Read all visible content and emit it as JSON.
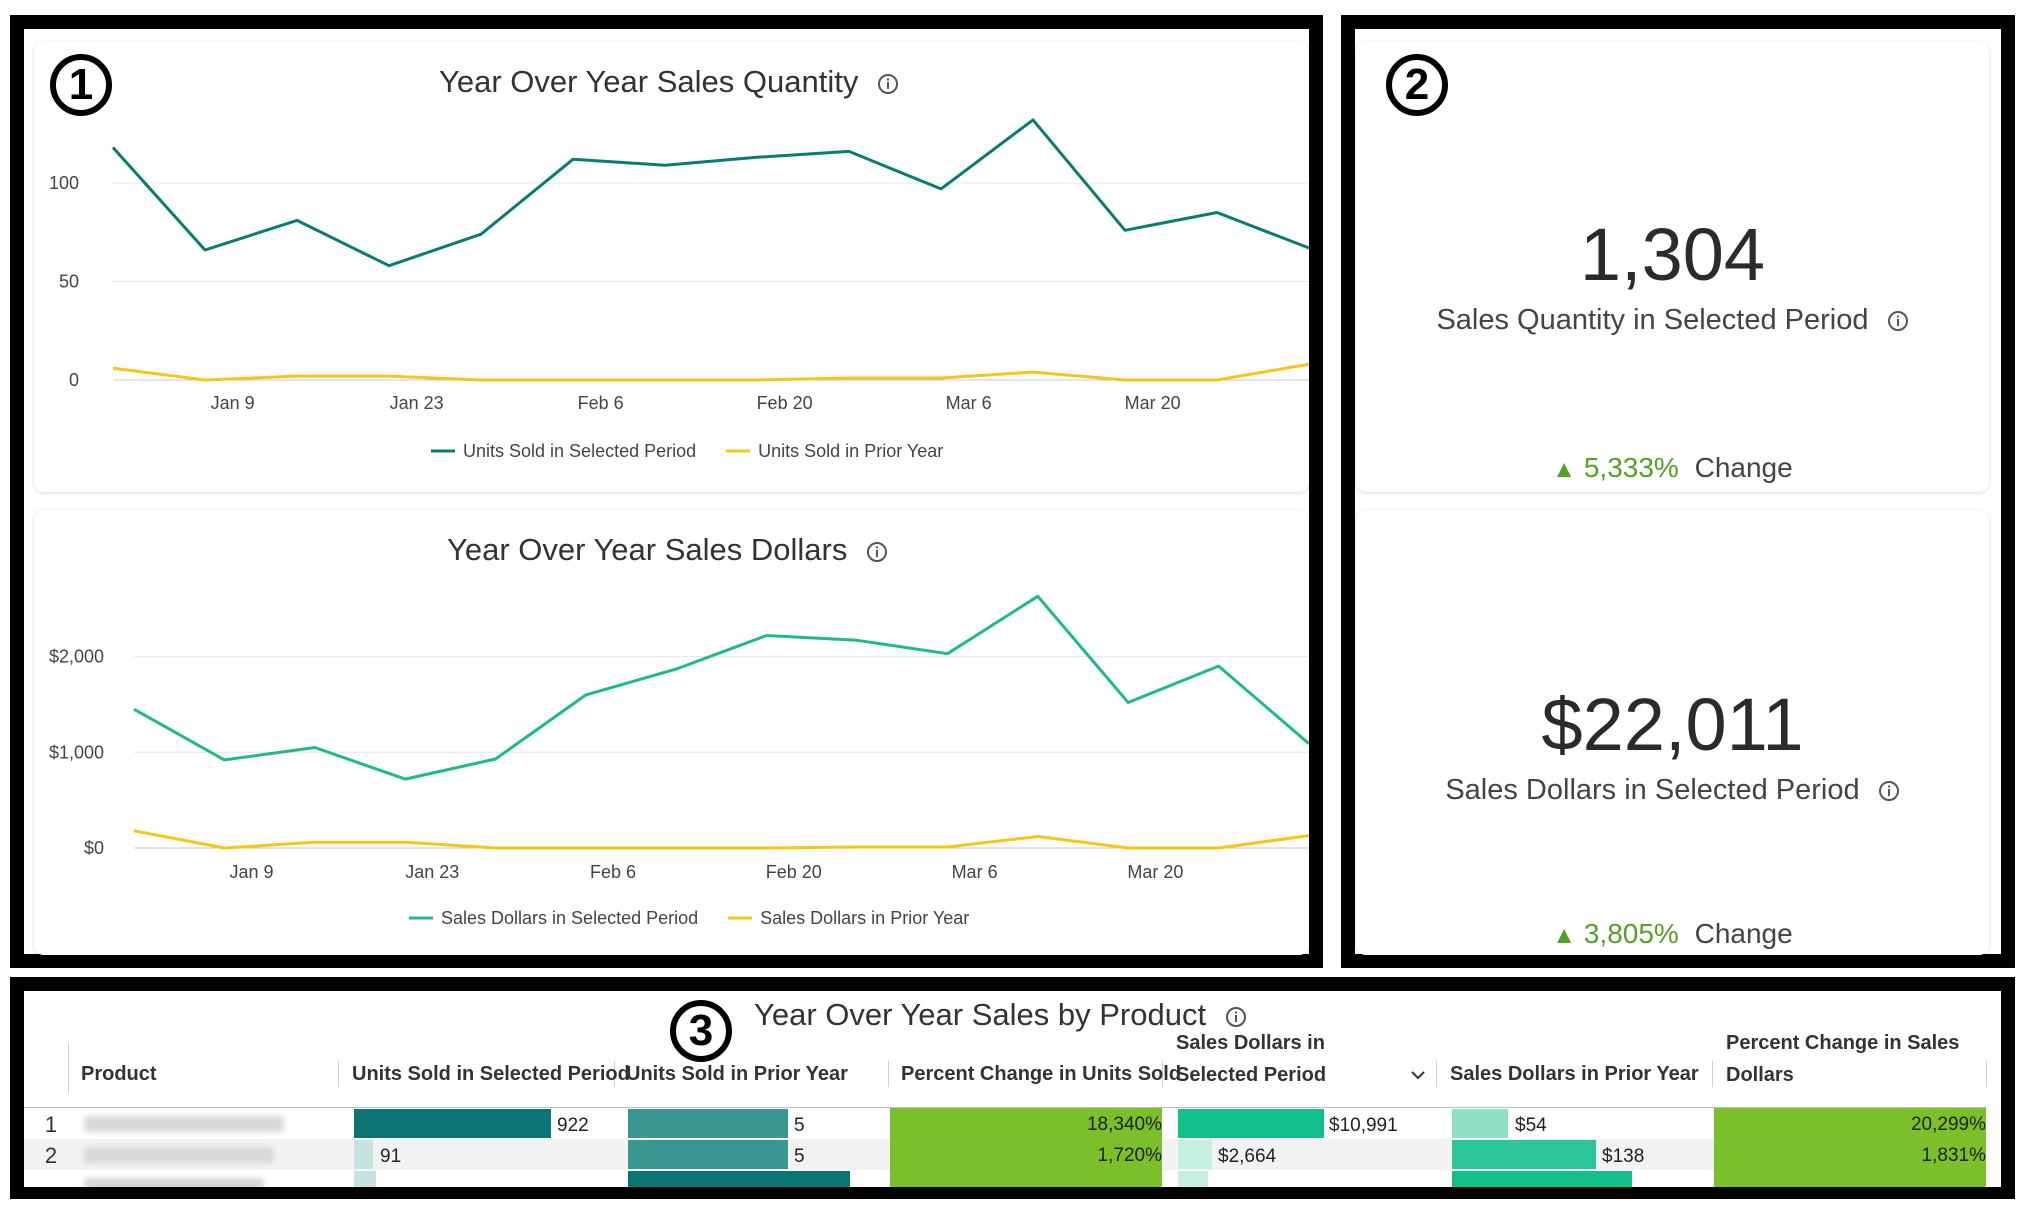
{
  "callouts": [
    "1",
    "2",
    "3"
  ],
  "icons": {
    "info": "info-circle-icon",
    "sort": "chevron-down-icon",
    "change_up": "triangle-up-icon"
  },
  "colors": {
    "teal": "#0a7b73",
    "green": "#20b98a",
    "yellow": "#f5c518",
    "pct_green": "#7bbf2a",
    "pct_text": "#56a02a"
  },
  "chart_data": [
    {
      "type": "line",
      "title": "Year Over Year Sales Quantity",
      "x_ticks": [
        "Jan 9",
        "Jan 23",
        "Feb 6",
        "Feb 20",
        "Mar 6",
        "Mar 20"
      ],
      "y_ticks": [
        "100",
        "50",
        "0"
      ],
      "ylim": [
        0,
        135
      ],
      "grid": true,
      "legend": "bottom",
      "series": [
        {
          "name": "Units Sold in Selected Period",
          "color": "#0a7b73",
          "values": [
            118,
            66,
            81,
            58,
            74,
            112,
            109,
            113,
            116,
            97,
            132,
            76,
            85,
            67
          ]
        },
        {
          "name": "Units Sold in Prior Year",
          "color": "#f5c518",
          "values": [
            6,
            0,
            2,
            2,
            0,
            0,
            0,
            0,
            1,
            1,
            4,
            0,
            0,
            8
          ]
        }
      ]
    },
    {
      "type": "line",
      "title": "Year Over Year Sales Dollars",
      "x_ticks": [
        "Jan 9",
        "Jan 23",
        "Feb 6",
        "Feb 20",
        "Mar 6",
        "Mar 20"
      ],
      "y_ticks": [
        "$2,000",
        "$1,000",
        "$0"
      ],
      "ylim": [
        0,
        2800
      ],
      "grid": true,
      "legend": "bottom",
      "series": [
        {
          "name": "Sales Dollars in Selected Period",
          "color": "#20b98a",
          "values": [
            1450,
            920,
            1050,
            720,
            930,
            1600,
            1870,
            2220,
            2170,
            2030,
            2630,
            1520,
            1900,
            1090
          ]
        },
        {
          "name": "Sales Dollars in Prior Year",
          "color": "#f5c518",
          "values": [
            180,
            0,
            60,
            60,
            0,
            0,
            0,
            0,
            10,
            10,
            120,
            0,
            0,
            130
          ]
        }
      ]
    }
  ],
  "kpis": [
    {
      "value": "1,304",
      "label": "Sales Quantity in Selected Period",
      "change_pct": "5,333%",
      "change_label": "Change"
    },
    {
      "value": "$22,011",
      "label": "Sales Dollars in Selected Period",
      "change_pct": "3,805%",
      "change_label": "Change"
    }
  ],
  "table": {
    "title": "Year Over Year Sales by Product",
    "columns": [
      "Product",
      "Units Sold in Selected Period",
      "Units Sold in Prior Year",
      "Percent Change in Units Sold",
      "Sales Dollars in Selected Period",
      "Sales Dollars in Prior Year",
      "Percent Change in Sales Dollars"
    ],
    "rows": [
      {
        "num": "1",
        "units": "922",
        "units_frac": 0.72,
        "prior": "5",
        "prior_frac": 0.59,
        "pct_units": "18,340%",
        "dollars": "$10,991",
        "dollars_frac": 0.72,
        "prior_dollars": "$54",
        "prior_dollars_frac": 0.21,
        "pct_dollars": "20,299%"
      },
      {
        "num": "2",
        "units": "91",
        "units_frac": 0.07,
        "prior": "5",
        "prior_frac": 0.59,
        "pct_units": "1,720%",
        "dollars": "$2,664",
        "dollars_frac": 0.13,
        "prior_dollars": "$138",
        "prior_dollars_frac": 0.53,
        "pct_dollars": "1,831%"
      }
    ]
  }
}
